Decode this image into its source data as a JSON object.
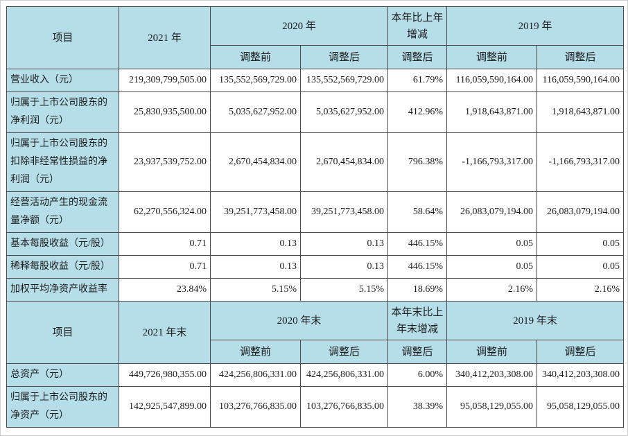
{
  "colors": {
    "header_bg": "#b5dee9",
    "cell_bg": "#ffffff",
    "border": "#4a4a4a",
    "text": "#1c1c1c"
  },
  "sections": [
    {
      "name": "operating-results",
      "header": {
        "item_label": "项目",
        "current_year": "2021 年",
        "prior_year_group": "2020 年",
        "change_label": "本年比上年增减",
        "prior2_year_group": "2019 年",
        "sub_labels": [
          "调整前",
          "调整后",
          "调整后",
          "调整前",
          "调整后"
        ]
      },
      "rows": [
        {
          "label": "营业收入（元）",
          "values": [
            "219,309,799,505.00",
            "135,552,569,729.00",
            "135,552,569,729.00",
            "61.79%",
            "116,059,590,164.00",
            "116,059,590,164.00"
          ]
        },
        {
          "label": "归属于上市公司股东的净利润（元）",
          "values": [
            "25,830,935,500.00",
            "5,035,627,952.00",
            "5,035,627,952.00",
            "412.96%",
            "1,918,643,871.00",
            "1,918,643,871.00"
          ]
        },
        {
          "label": "归属于上市公司股东的扣除非经常性损益的净利润（元）",
          "values": [
            "23,937,539,752.00",
            "2,670,454,834.00",
            "2,670,454,834.00",
            "796.38%",
            "-1,166,793,317.00",
            "-1,166,793,317.00"
          ]
        },
        {
          "label": "经营活动产生的现金流量净额（元）",
          "values": [
            "62,270,556,324.00",
            "39,251,773,458.00",
            "39,251,773,458.00",
            "58.64%",
            "26,083,079,194.00",
            "26,083,079,194.00"
          ]
        },
        {
          "label": "基本每股收益（元/股）",
          "values": [
            "0.71",
            "0.13",
            "0.13",
            "446.15%",
            "0.05",
            "0.05"
          ]
        },
        {
          "label": "稀释每股收益（元/股）",
          "values": [
            "0.71",
            "0.13",
            "0.13",
            "446.15%",
            "0.05",
            "0.05"
          ]
        },
        {
          "label": "加权平均净资产收益率",
          "values": [
            "23.84%",
            "5.15%",
            "5.15%",
            "18.69%",
            "2.16%",
            "2.16%"
          ]
        }
      ]
    },
    {
      "name": "balance-sheet",
      "header": {
        "item_label": "项目",
        "current_year": "2021 年末",
        "prior_year_group": "2020 年末",
        "change_label": "本年末比上年末增减",
        "prior2_year_group": "2019 年末",
        "sub_labels": [
          "调整前",
          "调整后",
          "调整后",
          "调整前",
          "调整后"
        ]
      },
      "rows": [
        {
          "label": "总资产（元）",
          "values": [
            "449,726,980,355.00",
            "424,256,806,331.00",
            "424,256,806,331.00",
            "6.00%",
            "340,412,203,308.00",
            "340,412,203,308.00"
          ]
        },
        {
          "label": "归属于上市公司股东的净资产（元）",
          "values": [
            "142,925,547,899.00",
            "103,276,766,835.00",
            "103,276,766,835.00",
            "38.39%",
            "95,058,129,055.00",
            "95,058,129,055.00"
          ]
        }
      ]
    }
  ]
}
